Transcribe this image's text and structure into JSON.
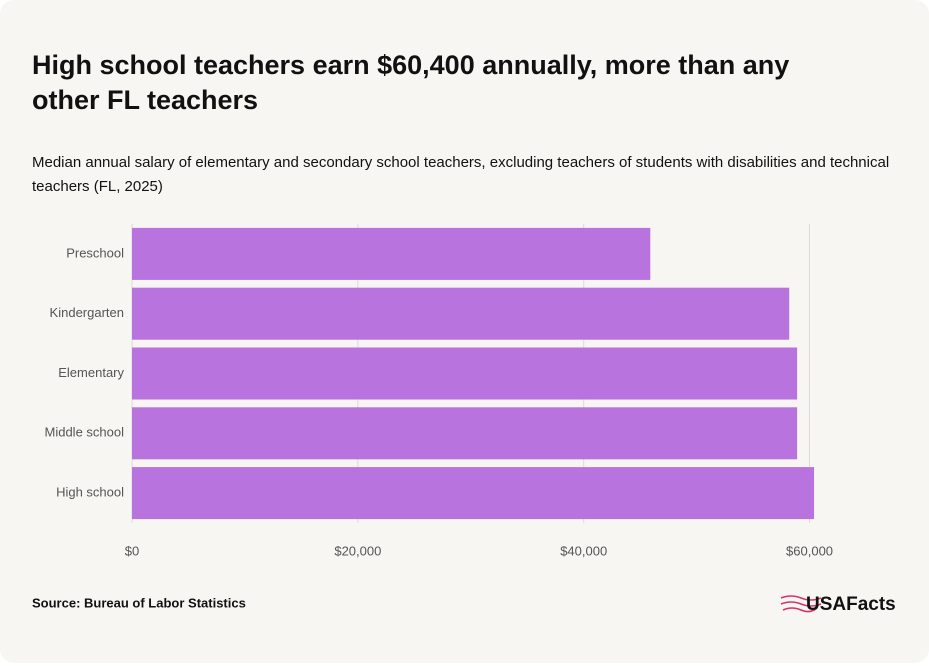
{
  "chart_data": {
    "type": "hbar",
    "title": "High school teachers earn $60,400 annually, more than any other FL teachers",
    "subtitle": "Median annual salary of elementary and secondary school teachers, excluding teachers of students with disabilities and technical teachers (FL, 2025)",
    "categories": [
      "Preschool",
      "Kindergarten",
      "Elementary",
      "Middle school",
      "High school"
    ],
    "values": [
      45900,
      58200,
      58900,
      58900,
      60400
    ],
    "color": "#b873de",
    "xlim": [
      0,
      65000
    ],
    "xticks": [
      {
        "value": 0,
        "label": "$0"
      },
      {
        "value": 20000,
        "label": "$20,000"
      },
      {
        "value": 40000,
        "label": "$40,000"
      },
      {
        "value": 60000,
        "label": "$60,000"
      }
    ],
    "grid": true,
    "source": "Source: Bureau of Labor Statistics",
    "brand": "USAFacts"
  }
}
